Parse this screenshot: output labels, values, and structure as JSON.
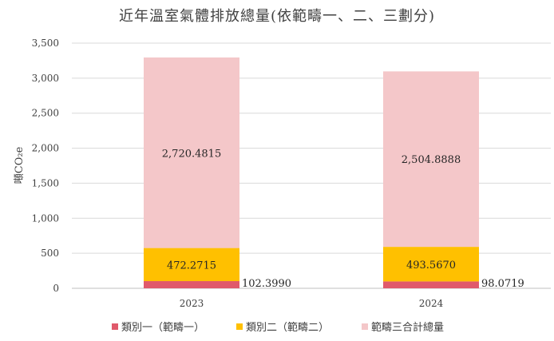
{
  "chart_data": {
    "type": "bar",
    "stacked": true,
    "title": "近年溫室氣體排放總量(依範疇一、二、三劃分)",
    "ylabel": "噸CO₂e",
    "xlabel": "",
    "categories": [
      "2023",
      "2024"
    ],
    "ylim": [
      0,
      3500
    ],
    "yticks": [
      0,
      500,
      1000,
      1500,
      2000,
      2500,
      3000,
      3500
    ],
    "ytick_labels": [
      "0",
      "500",
      "1,000",
      "1,500",
      "2,000",
      "2,500",
      "3,000",
      "3,500"
    ],
    "grid": true,
    "legend_position": "bottom",
    "series": [
      {
        "name": "類別一（範疇一）",
        "color": "#e05a6b",
        "values": [
          102.399,
          98.0719
        ],
        "labels": [
          "102.3990",
          "98.0719"
        ]
      },
      {
        "name": "類別二（範疇二）",
        "color": "#ffc000",
        "values": [
          472.2715,
          493.567
        ],
        "labels": [
          "472.2715",
          "493.5670"
        ]
      },
      {
        "name": "範疇三合計總量",
        "color": "#f4c7c9",
        "values": [
          2720.4815,
          2504.8888
        ],
        "labels": [
          "2,720.4815",
          "2,504.8888"
        ]
      }
    ]
  }
}
